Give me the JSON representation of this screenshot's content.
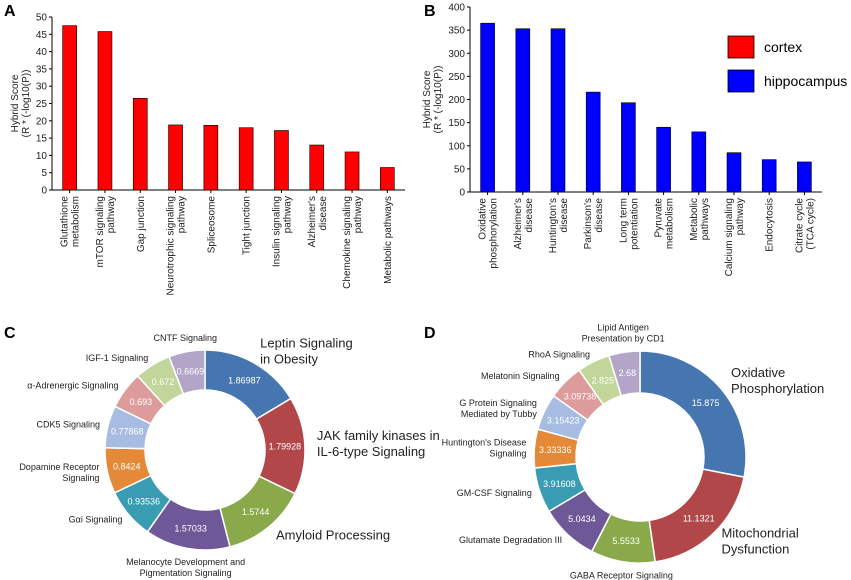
{
  "chart_data": [
    {
      "panel": "A",
      "type": "bar",
      "ylabel_line1": "Hybrid Score",
      "ylabel_line2": "(R * (-log10(P))",
      "ylim": [
        0,
        50
      ],
      "yticks": [
        0,
        5,
        10,
        15,
        20,
        25,
        30,
        35,
        40,
        45,
        50
      ],
      "color": "#ff0000",
      "categories": [
        [
          "Glutathione",
          "metabolism"
        ],
        [
          "mTOR signaling",
          "pathway"
        ],
        [
          "Gap junction"
        ],
        [
          "Neurotrophic signaling",
          "pathway"
        ],
        [
          "Spliceosome"
        ],
        [
          "Tight junction"
        ],
        [
          "Insulin signaling",
          "pathway"
        ],
        [
          "Alzheimer's",
          "disease"
        ],
        [
          "Chemokine signaling",
          "pathway"
        ],
        [
          "Metabolic pathways"
        ]
      ],
      "values": [
        47.5,
        45.8,
        26.5,
        18.8,
        18.7,
        18.0,
        17.2,
        13.0,
        11.0,
        6.5
      ]
    },
    {
      "panel": "B",
      "type": "bar",
      "ylabel_line1": "Hybrid Score",
      "ylabel_line2": "(R * (-log10(P))",
      "ylim": [
        0,
        400
      ],
      "yticks": [
        0,
        50,
        100,
        150,
        200,
        250,
        300,
        350,
        400
      ],
      "color": "#0000ff",
      "categories": [
        [
          "Oxidative",
          "phosphorylation"
        ],
        [
          "Alzheimer's",
          "disease"
        ],
        [
          "Huntington's",
          "disease"
        ],
        [
          "Parkinson's",
          "disease"
        ],
        [
          "Long term",
          "potentiation"
        ],
        [
          "Pyruvate",
          "metabolism"
        ],
        [
          "Metabolic",
          "pathways"
        ],
        [
          "Calcium signaling",
          "pathway"
        ],
        [
          "Endocytosis"
        ],
        [
          "Citrate cycle",
          "(TCA cycle)"
        ]
      ],
      "values": [
        365,
        353,
        353,
        216,
        193,
        140,
        130,
        85,
        70,
        65
      ],
      "legend": [
        {
          "label": "cortex",
          "color": "#ff0000"
        },
        {
          "label": "hippocampus",
          "color": "#0000ff"
        }
      ]
    },
    {
      "panel": "C",
      "type": "pie",
      "donut": true,
      "slices": [
        {
          "label": [
            "Leptin Signaling",
            "in Obesity"
          ],
          "value": 1.86987,
          "value_text": "1.86987",
          "color": "#4676b0",
          "big": true
        },
        {
          "label": [
            "JAK family kinases in",
            "IL-6-type Signaling"
          ],
          "value": 1.79928,
          "value_text": "1.79928",
          "color": "#b2474a",
          "big": true
        },
        {
          "label": [
            "Amyloid Processing"
          ],
          "value": 1.5744,
          "value_text": "1.5744",
          "color": "#89a94a",
          "big": true
        },
        {
          "label": [
            "Melanocyte Development and",
            "Pigmentation Signaling"
          ],
          "value": 1.57033,
          "value_text": "1.57033",
          "color": "#6e5897",
          "big": false
        },
        {
          "label": [
            "Gαi Signaling"
          ],
          "value": 0.93536,
          "value_text": "0.93536",
          "color": "#3a9cb3",
          "big": false
        },
        {
          "label": [
            "Dopamine Receptor",
            "Signaling"
          ],
          "value": 0.8424,
          "value_text": "0.8424",
          "color": "#e38937",
          "big": false
        },
        {
          "label": [
            "CDK5 Signaling"
          ],
          "value": 0.77868,
          "value_text": "0.77868",
          "color": "#a6bde1",
          "big": false
        },
        {
          "label": [
            "α-Adrenergic Signaling"
          ],
          "value": 0.693,
          "value_text": "0.693",
          "color": "#dd9b9b",
          "big": false
        },
        {
          "label": [
            "IGF-1 Signaling"
          ],
          "value": 0.672,
          "value_text": "0.672",
          "color": "#c2d69b",
          "big": false
        },
        {
          "label": [
            "CNTF Signaling"
          ],
          "value": 0.6669,
          "value_text": "0.6669",
          "color": "#b3a5c8",
          "big": false
        }
      ]
    },
    {
      "panel": "D",
      "type": "pie",
      "donut": true,
      "slices": [
        {
          "label": [
            "Oxidative",
            "Phosphorylation"
          ],
          "value": 15.875,
          "value_text": "15.875",
          "color": "#4676b0",
          "big": true
        },
        {
          "label": [
            "Mitochondrial",
            "Dysfunction"
          ],
          "value": 11.1321,
          "value_text": "11.1321",
          "color": "#b2474a",
          "big": true
        },
        {
          "label": [
            "GABA Receptor Signaling"
          ],
          "value": 5.5533,
          "value_text": "5.5533",
          "color": "#89a94a",
          "big": false
        },
        {
          "label": [
            "Glutamate Degradation III"
          ],
          "value": 5.0434,
          "value_text": "5.0434",
          "color": "#6e5897",
          "big": false
        },
        {
          "label": [
            "GM-CSF Signaling"
          ],
          "value": 3.91608,
          "value_text": "3.91608",
          "color": "#3a9cb3",
          "big": false
        },
        {
          "label": [
            "Huntington's Disease",
            "Signaling"
          ],
          "value": 3.33336,
          "value_text": "3.33336",
          "color": "#e38937",
          "big": false
        },
        {
          "label": [
            "G Protein Signaling",
            "Mediated by Tubby"
          ],
          "value": 3.15423,
          "value_text": "3.15423",
          "color": "#a6bde1",
          "big": false
        },
        {
          "label": [
            "Melatonin Signaling"
          ],
          "value": 3.09738,
          "value_text": "3.09738",
          "color": "#dd9b9b",
          "big": false
        },
        {
          "label": [
            "RhoA Signaling"
          ],
          "value": 2.825,
          "value_text": "2.825",
          "color": "#c2d69b",
          "big": false
        },
        {
          "label": [
            "Lipid Antigen",
            "Presentation by CD1"
          ],
          "value": 2.68,
          "value_text": "2.68",
          "color": "#b3a5c8",
          "big": false
        }
      ]
    }
  ]
}
